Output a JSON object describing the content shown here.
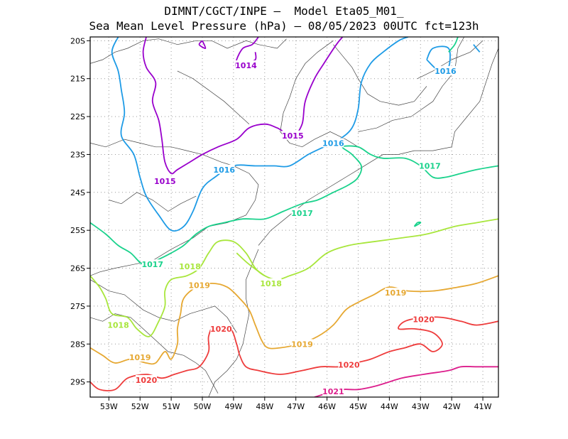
{
  "title": {
    "line1": "DIMNT/CGCT/INPE —  Model Eta05_M01_",
    "line2": "Sea Mean Level Pressure (hPa) — 08/05/2023 00UTC fct=123h"
  },
  "map": {
    "lon_range": [
      -53.6,
      -40.5
    ],
    "lat_range": [
      -29.4,
      -19.9
    ],
    "lon_ticks": [
      {
        "value": -53,
        "label": "53W"
      },
      {
        "value": -52,
        "label": "52W"
      },
      {
        "value": -51,
        "label": "51W"
      },
      {
        "value": -50,
        "label": "50W"
      },
      {
        "value": -49,
        "label": "49W"
      },
      {
        "value": -48,
        "label": "48W"
      },
      {
        "value": -47,
        "label": "47W"
      },
      {
        "value": -46,
        "label": "46W"
      },
      {
        "value": -45,
        "label": "45W"
      },
      {
        "value": -44,
        "label": "44W"
      },
      {
        "value": -43,
        "label": "43W"
      },
      {
        "value": -42,
        "label": "42W"
      },
      {
        "value": -41,
        "label": "41W"
      }
    ],
    "lat_ticks": [
      {
        "value": -20,
        "label": "20S"
      },
      {
        "value": -21,
        "label": "21S"
      },
      {
        "value": -22,
        "label": "22S"
      },
      {
        "value": -23,
        "label": "23S"
      },
      {
        "value": -24,
        "label": "24S"
      },
      {
        "value": -25,
        "label": "25S"
      },
      {
        "value": -26,
        "label": "26S"
      },
      {
        "value": -27,
        "label": "27S"
      },
      {
        "value": -28,
        "label": "28S"
      },
      {
        "value": -29,
        "label": "29S"
      }
    ],
    "grid": "dotted"
  },
  "isobars": [
    {
      "level": "1014",
      "color": "#9900cc",
      "label_pos": [
        -48.6,
        -20.65
      ],
      "points": [
        [
          -48.2,
          -19.9
        ],
        [
          -48.4,
          -20.1
        ],
        [
          -48.7,
          -20.2
        ],
        [
          -48.9,
          -20.5
        ],
        [
          -48.9,
          -20.7
        ],
        [
          -48.6,
          -20.6
        ],
        [
          -48.3,
          -20.5
        ],
        [
          -48.3,
          -20.3
        ]
      ]
    },
    {
      "level": "1015",
      "color": "#9900cc",
      "label_pos": [
        -51.2,
        -23.7
      ],
      "points": [
        [
          -51.8,
          -19.9
        ],
        [
          -51.9,
          -20.3
        ],
        [
          -51.8,
          -20.7
        ],
        [
          -51.5,
          -21.1
        ],
        [
          -51.6,
          -21.6
        ],
        [
          -51.4,
          -22.1
        ],
        [
          -51.3,
          -22.6
        ],
        [
          -51.2,
          -23.2
        ],
        [
          -51.0,
          -23.5
        ],
        [
          -50.8,
          -23.4
        ],
        [
          -50.4,
          -23.2
        ],
        [
          -50.0,
          -23.0
        ],
        [
          -49.5,
          -22.8
        ],
        [
          -48.9,
          -22.6
        ],
        [
          -48.5,
          -22.3
        ],
        [
          -48.0,
          -22.2
        ],
        [
          -47.6,
          -22.3
        ],
        [
          -47.1,
          -22.5
        ],
        [
          -46.8,
          -22.2
        ],
        [
          -46.7,
          -21.6
        ],
        [
          -46.4,
          -21.0
        ],
        [
          -46.1,
          -20.6
        ],
        [
          -45.7,
          -20.1
        ],
        [
          -45.5,
          -19.9
        ]
      ]
    },
    {
      "level": "1015",
      "color": "#9900cc",
      "label_pos": [
        -47.1,
        -22.5
      ],
      "points": [
        [
          -50.0,
          -20.0
        ],
        [
          -49.9,
          -20.2
        ],
        [
          -50.1,
          -20.1
        ],
        [
          -50.0,
          -20.0
        ]
      ]
    },
    {
      "level": "1016",
      "color": "#1e9be6",
      "label_pos": [
        -49.3,
        -23.4
      ],
      "points": [
        [
          -52.7,
          -19.9
        ],
        [
          -52.9,
          -20.3
        ],
        [
          -52.7,
          -20.8
        ],
        [
          -52.6,
          -21.3
        ],
        [
          -52.5,
          -21.9
        ],
        [
          -52.6,
          -22.5
        ],
        [
          -52.2,
          -23.0
        ],
        [
          -52.0,
          -23.6
        ],
        [
          -51.8,
          -24.1
        ],
        [
          -51.4,
          -24.6
        ],
        [
          -51.0,
          -25.0
        ],
        [
          -50.6,
          -24.9
        ],
        [
          -50.3,
          -24.5
        ],
        [
          -50.0,
          -23.9
        ],
        [
          -49.6,
          -23.6
        ],
        [
          -49.0,
          -23.3
        ],
        [
          -48.3,
          -23.3
        ],
        [
          -47.7,
          -23.3
        ],
        [
          -47.2,
          -23.3
        ],
        [
          -46.6,
          -23.0
        ],
        [
          -46.1,
          -22.8
        ],
        [
          -45.6,
          -22.6
        ],
        [
          -45.2,
          -22.3
        ],
        [
          -45.0,
          -21.8
        ],
        [
          -44.9,
          -21.1
        ],
        [
          -44.6,
          -20.6
        ],
        [
          -44.2,
          -20.3
        ],
        [
          -43.7,
          -20.0
        ],
        [
          -43.4,
          -19.9
        ]
      ]
    },
    {
      "level": "1016",
      "color": "#1e9be6",
      "label_pos": [
        -42.2,
        -20.8
      ],
      "points": [
        [
          -42.8,
          -20.5
        ],
        [
          -42.4,
          -20.8
        ],
        [
          -42.1,
          -20.7
        ],
        [
          -42.1,
          -20.2
        ],
        [
          -42.6,
          -20.2
        ],
        [
          -42.8,
          -20.5
        ]
      ]
    },
    {
      "level": "1016",
      "color": "#1e9be6",
      "label_pos": [
        -45.8,
        -22.7
      ],
      "points": [
        [
          -41.3,
          -20.1
        ],
        [
          -41.1,
          -20.3
        ]
      ]
    },
    {
      "level": "1017",
      "color": "#1ad28c",
      "label_pos": [
        -51.6,
        -25.9
      ],
      "points": [
        [
          -53.6,
          -24.8
        ],
        [
          -53.1,
          -25.1
        ],
        [
          -52.7,
          -25.4
        ],
        [
          -52.3,
          -25.6
        ],
        [
          -51.9,
          -25.9
        ],
        [
          -51.5,
          -25.8
        ],
        [
          -51.0,
          -25.6
        ],
        [
          -50.6,
          -25.4
        ],
        [
          -50.2,
          -25.1
        ],
        [
          -49.8,
          -24.9
        ],
        [
          -49.3,
          -24.8
        ],
        [
          -48.7,
          -24.7
        ],
        [
          -48.0,
          -24.7
        ],
        [
          -47.4,
          -24.5
        ],
        [
          -46.8,
          -24.3
        ],
        [
          -46.3,
          -24.2
        ],
        [
          -45.8,
          -24.0
        ],
        [
          -45.3,
          -23.8
        ],
        [
          -45.0,
          -23.6
        ],
        [
          -44.9,
          -23.3
        ],
        [
          -45.2,
          -23.0
        ],
        [
          -45.5,
          -22.8
        ],
        [
          -45.0,
          -22.8
        ],
        [
          -44.6,
          -23.0
        ],
        [
          -44.2,
          -23.1
        ],
        [
          -43.5,
          -23.1
        ],
        [
          -43.0,
          -23.3
        ],
        [
          -42.6,
          -23.6
        ],
        [
          -42.2,
          -23.6
        ],
        [
          -41.7,
          -23.5
        ],
        [
          -41.2,
          -23.4
        ],
        [
          -40.5,
          -23.3
        ]
      ]
    },
    {
      "level": "1017",
      "color": "#1ad28c",
      "label_pos": [
        -46.8,
        -24.55
      ],
      "points": [
        [
          -43.2,
          -24.9
        ],
        [
          -43.0,
          -24.8
        ],
        [
          -43.1,
          -24.8
        ],
        [
          -43.2,
          -24.9
        ]
      ]
    },
    {
      "level": "1017",
      "color": "#1ad28c",
      "label_pos": [
        -42.7,
        -23.3
      ],
      "points": [
        [
          -42.1,
          -20.3
        ],
        [
          -41.9,
          -20.1
        ],
        [
          -41.8,
          -19.9
        ]
      ]
    },
    {
      "level": "1018",
      "color": "#a8e63c",
      "label_pos": [
        -50.4,
        -25.95
      ],
      "points": [
        [
          -53.6,
          -26.2
        ],
        [
          -53.3,
          -26.5
        ],
        [
          -53.1,
          -26.8
        ],
        [
          -52.9,
          -27.2
        ],
        [
          -52.4,
          -27.3
        ],
        [
          -52.1,
          -27.6
        ],
        [
          -51.7,
          -27.8
        ],
        [
          -51.4,
          -27.4
        ],
        [
          -51.2,
          -27.0
        ],
        [
          -51.2,
          -26.6
        ],
        [
          -51.0,
          -26.3
        ],
        [
          -50.5,
          -26.2
        ],
        [
          -50.1,
          -26.0
        ],
        [
          -49.8,
          -25.6
        ],
        [
          -49.5,
          -25.3
        ],
        [
          -49.0,
          -25.3
        ],
        [
          -48.6,
          -25.6
        ],
        [
          -48.3,
          -26.0
        ],
        [
          -48.0,
          -26.2
        ],
        [
          -47.6,
          -26.3
        ],
        [
          -47.2,
          -26.2
        ],
        [
          -46.6,
          -26.0
        ],
        [
          -46.0,
          -25.6
        ],
        [
          -45.3,
          -25.4
        ],
        [
          -44.5,
          -25.3
        ],
        [
          -43.6,
          -25.2
        ],
        [
          -42.8,
          -25.1
        ],
        [
          -41.9,
          -24.9
        ],
        [
          -41.2,
          -24.8
        ],
        [
          -40.5,
          -24.7
        ]
      ]
    },
    {
      "level": "1018",
      "color": "#a8e63c",
      "label_pos": [
        -47.8,
        -26.4
      ],
      "points": [
        [
          -48.9,
          -25.6
        ],
        [
          -48.5,
          -25.9
        ],
        [
          -48.0,
          -26.2
        ]
      ]
    },
    {
      "level": "1018",
      "color": "#a8e63c",
      "label_pos": [
        -52.7,
        -27.5
      ],
      "points": [
        [
          -52.5,
          -27.4
        ]
      ]
    },
    {
      "level": "1019",
      "color": "#e6a832",
      "label_pos": [
        -50.1,
        -26.45
      ],
      "points": [
        [
          -53.6,
          -28.1
        ],
        [
          -53.2,
          -28.3
        ],
        [
          -52.8,
          -28.5
        ],
        [
          -52.3,
          -28.4
        ],
        [
          -51.8,
          -28.5
        ],
        [
          -51.5,
          -28.5
        ],
        [
          -51.2,
          -28.2
        ],
        [
          -51.0,
          -28.4
        ],
        [
          -50.8,
          -28.0
        ],
        [
          -50.8,
          -27.6
        ],
        [
          -50.7,
          -27.2
        ],
        [
          -50.6,
          -26.8
        ],
        [
          -50.2,
          -26.5
        ],
        [
          -49.7,
          -26.4
        ],
        [
          -49.2,
          -26.5
        ],
        [
          -48.8,
          -26.8
        ],
        [
          -48.5,
          -27.1
        ],
        [
          -48.3,
          -27.5
        ],
        [
          -48.1,
          -27.9
        ],
        [
          -47.9,
          -28.1
        ],
        [
          -47.5,
          -28.1
        ],
        [
          -46.9,
          -28.0
        ],
        [
          -46.3,
          -27.8
        ],
        [
          -45.8,
          -27.5
        ],
        [
          -45.4,
          -27.1
        ],
        [
          -45.0,
          -26.9
        ],
        [
          -44.5,
          -26.7
        ],
        [
          -44.0,
          -26.5
        ],
        [
          -43.4,
          -26.6
        ],
        [
          -42.6,
          -26.6
        ],
        [
          -41.8,
          -26.5
        ],
        [
          -41.2,
          -26.4
        ],
        [
          -40.5,
          -26.2
        ]
      ]
    },
    {
      "level": "1019",
      "color": "#e6a832",
      "label_pos": [
        -46.8,
        -28.0
      ],
      "points": [
        [
          -43.6,
          -27.3
        ]
      ]
    },
    {
      "level": "1019",
      "color": "#e6a832",
      "label_pos": [
        -43.8,
        -26.65
      ],
      "points": [
        [
          -43.5,
          -26.6
        ]
      ]
    },
    {
      "level": "1019",
      "color": "#e6a832",
      "label_pos": [
        -52.0,
        -28.35
      ],
      "points": [
        [
          -52.0,
          -28.4
        ]
      ]
    },
    {
      "level": "1020",
      "color": "#ee3c3c",
      "label_pos": [
        -49.4,
        -27.6
      ],
      "points": [
        [
          -53.6,
          -29.0
        ],
        [
          -53.3,
          -29.2
        ],
        [
          -52.8,
          -29.2
        ],
        [
          -52.4,
          -28.9
        ],
        [
          -51.8,
          -28.8
        ],
        [
          -51.3,
          -28.9
        ],
        [
          -50.9,
          -28.8
        ],
        [
          -50.5,
          -28.7
        ],
        [
          -50.1,
          -28.6
        ],
        [
          -49.8,
          -28.2
        ],
        [
          -49.8,
          -27.8
        ],
        [
          -49.6,
          -27.5
        ],
        [
          -49.1,
          -27.6
        ],
        [
          -48.9,
          -28.0
        ],
        [
          -48.8,
          -28.3
        ],
        [
          -48.6,
          -28.6
        ],
        [
          -48.2,
          -28.7
        ],
        [
          -47.5,
          -28.8
        ],
        [
          -46.8,
          -28.7
        ],
        [
          -46.2,
          -28.6
        ],
        [
          -45.6,
          -28.6
        ],
        [
          -45.1,
          -28.5
        ],
        [
          -44.6,
          -28.4
        ],
        [
          -44.0,
          -28.2
        ],
        [
          -43.5,
          -28.1
        ],
        [
          -43.0,
          -28.0
        ],
        [
          -42.6,
          -28.2
        ],
        [
          -42.3,
          -28.0
        ],
        [
          -42.6,
          -27.7
        ],
        [
          -43.2,
          -27.6
        ],
        [
          -43.7,
          -27.6
        ],
        [
          -43.5,
          -27.4
        ],
        [
          -42.9,
          -27.3
        ],
        [
          -42.3,
          -27.3
        ],
        [
          -41.7,
          -27.4
        ],
        [
          -41.2,
          -27.5
        ],
        [
          -40.5,
          -27.4
        ]
      ]
    },
    {
      "level": "1020",
      "color": "#ee3c3c",
      "label_pos": [
        -45.3,
        -28.55
      ],
      "points": [
        [
          -45.3,
          -28.5
        ]
      ]
    },
    {
      "level": "1020",
      "color": "#ee3c3c",
      "label_pos": [
        -42.9,
        -27.35
      ],
      "points": [
        [
          -42.9,
          -27.3
        ]
      ]
    },
    {
      "level": "1020",
      "color": "#ee3c3c",
      "label_pos": [
        -51.8,
        -28.95
      ],
      "points": [
        [
          -51.8,
          -28.9
        ]
      ]
    },
    {
      "level": "1021",
      "color": "#dc1e8c",
      "label_pos": [
        -45.8,
        -29.25
      ],
      "points": [
        [
          -46.4,
          -29.4
        ],
        [
          -46.0,
          -29.3
        ],
        [
          -45.5,
          -29.2
        ],
        [
          -45.0,
          -29.2
        ],
        [
          -44.4,
          -29.1
        ],
        [
          -43.6,
          -28.9
        ],
        [
          -42.9,
          -28.8
        ],
        [
          -42.1,
          -28.7
        ],
        [
          -41.7,
          -28.6
        ],
        [
          -41.2,
          -28.6
        ],
        [
          -40.5,
          -28.6
        ]
      ]
    }
  ],
  "colors": {
    "frame": "#000000",
    "grid": "#999999",
    "boundaries": "#444444"
  }
}
